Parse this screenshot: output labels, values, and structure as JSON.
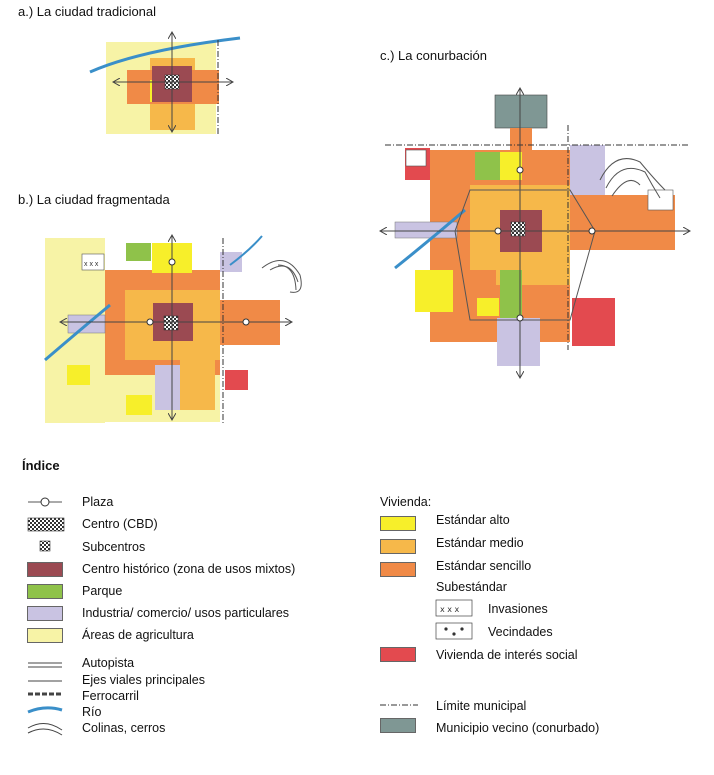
{
  "titles": {
    "a": "a.) La ciudad tradicional",
    "b": "b.) La ciudad fragmentada",
    "c": "c.) La conurbación"
  },
  "legend": {
    "heading": "Índice",
    "left": [
      {
        "label": "Plaza",
        "icon": "plaza-icon"
      },
      {
        "label": "Centro (CBD)",
        "icon": "cbd-icon"
      },
      {
        "label": "Subcentros",
        "icon": "subcentro-icon"
      },
      {
        "label": "Centro histórico (zona de usos mixtos)",
        "color": "#9b4a52"
      },
      {
        "label": "Parque",
        "color": "#8fc24a"
      },
      {
        "label": "Industria/ comercio/ usos particulares",
        "color": "#c9c3e2"
      },
      {
        "label": "Áreas de agricultura",
        "color": "#f7f3a6"
      },
      {
        "label": "Autopista",
        "icon": "autopista-line-icon"
      },
      {
        "label": "Ejes viales principales",
        "icon": "eje-vial-line-icon"
      },
      {
        "label": "Ferrocarril",
        "icon": "ferrocarril-line-icon"
      },
      {
        "label": "Río",
        "icon": "rio-line-icon"
      },
      {
        "label": "Colinas, cerros",
        "icon": "colinas-line-icon"
      }
    ],
    "vivienda_heading": "Vivienda:",
    "right": [
      {
        "label": "Estándar alto",
        "color": "#f7ef2a"
      },
      {
        "label": "Estándar medio",
        "color": "#f6b84a"
      },
      {
        "label": "Estándar sencillo",
        "color": "#f08a47"
      },
      {
        "label": "Subestándar"
      },
      {
        "label": "Invasiones",
        "icon": "invasiones-icon"
      },
      {
        "label": "Vecindades",
        "icon": "vecindades-icon"
      },
      {
        "label": "Vivienda de interés social",
        "color": "#e34a4f"
      },
      {
        "label": "Límite municipal",
        "icon": "limite-municipal-line-icon"
      },
      {
        "label": "Municipio vecino (conurbado)",
        "color": "#7f9794"
      }
    ]
  },
  "colors": {
    "yellow": "#f7ef2a",
    "medium": "#f6b84a",
    "orange": "#f08a47",
    "historic": "#9b4a52",
    "park": "#8fc24a",
    "industry": "#c9c3e2",
    "agri": "#f7f3a6",
    "social": "#e34a4f",
    "neighbor": "#7f9794",
    "river": "#3a8fc9"
  }
}
